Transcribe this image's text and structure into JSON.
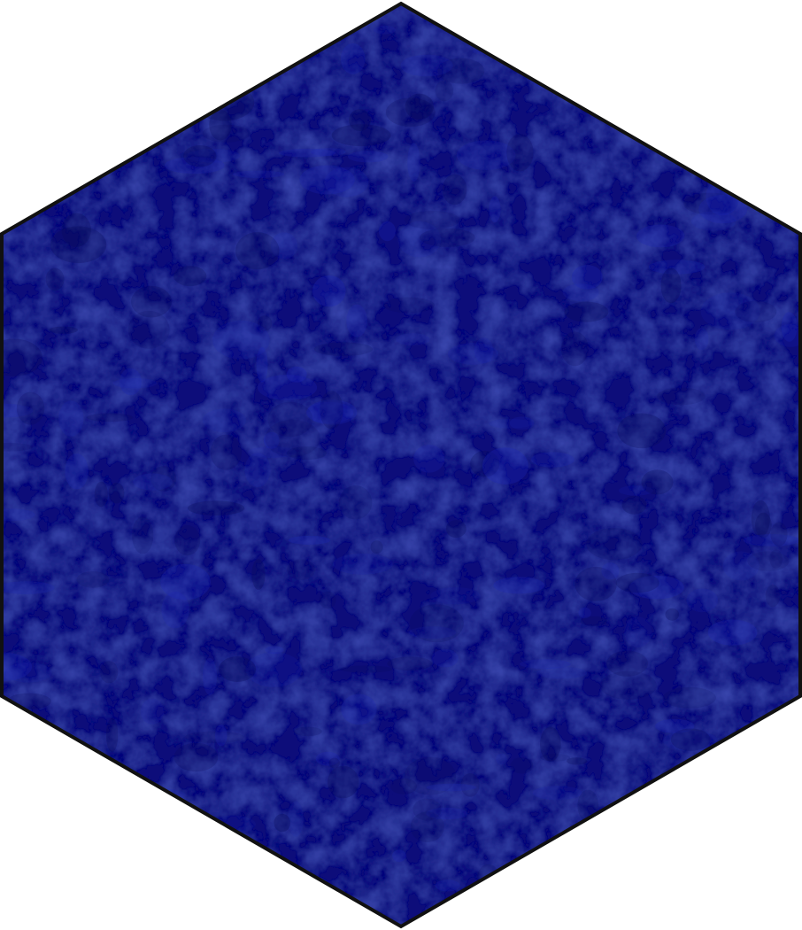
{
  "tile": {
    "shape": "hexagon",
    "orientation": "pointy-top",
    "fill_color": "#0b0f7a",
    "highlight_color": "#1a25b8",
    "shadow_color": "#080a55",
    "border_color": "#111111",
    "texture": "mottled"
  }
}
